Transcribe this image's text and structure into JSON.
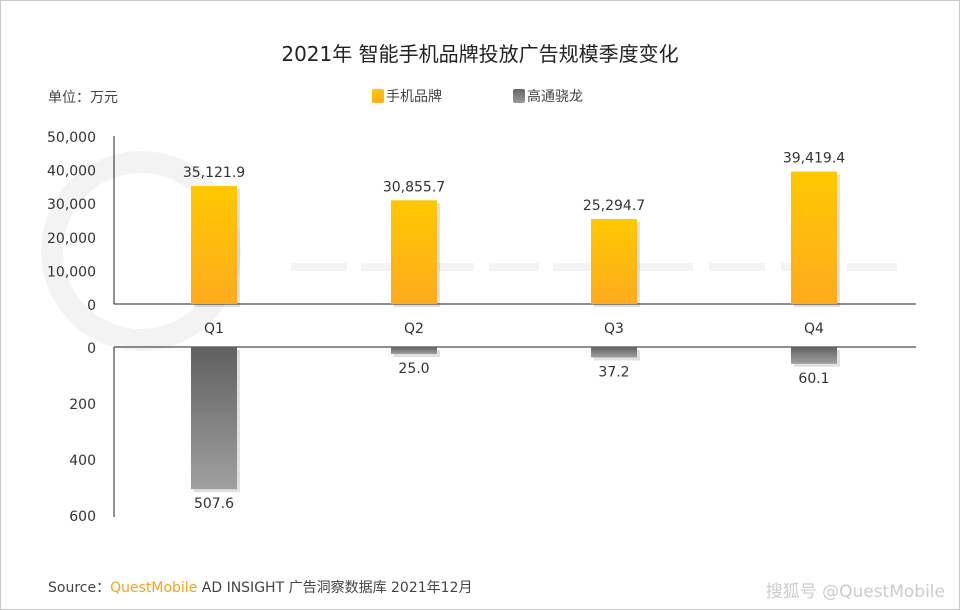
{
  "title": "2021年 智能手机品牌投放广告规模季度变化",
  "unit_label": "单位：万元",
  "legend": [
    {
      "name": "手机品牌",
      "color": "#ffc000"
    },
    {
      "name": "高通骁龙",
      "color": "#707070"
    }
  ],
  "watermark": "QUESTMOBILE",
  "source": {
    "prefix": "Source：",
    "brand": "QuestMobile",
    "rest": " AD INSIGHT 广告洞察数据库 2021年12月"
  },
  "credit": "搜狐号 @QuestMobile",
  "chart_data": [
    {
      "type": "bar",
      "categories": [
        "Q1",
        "Q2",
        "Q3",
        "Q4"
      ],
      "series": [
        {
          "name": "手机品牌",
          "values": [
            35121.9,
            30855.7,
            25294.7,
            39419.4
          ],
          "labels": [
            "35,121.9",
            "30,855.7",
            "25,294.7",
            "39,419.4"
          ]
        }
      ],
      "ylim": [
        0,
        50000
      ],
      "yticks": [
        "0",
        "10,000",
        "20,000",
        "30,000",
        "40,000",
        "50,000"
      ],
      "color": "#ffc000"
    },
    {
      "type": "bar",
      "categories": [
        "Q1",
        "Q2",
        "Q3",
        "Q4"
      ],
      "series": [
        {
          "name": "高通骁龙",
          "values": [
            507.6,
            25.0,
            37.2,
            60.1
          ],
          "labels": [
            "507.6",
            "25.0",
            "37.2",
            "60.1"
          ]
        }
      ],
      "ylim": [
        0,
        600
      ],
      "inverted": true,
      "yticks": [
        "0",
        "200",
        "400",
        "600"
      ],
      "color": "#707070"
    }
  ]
}
